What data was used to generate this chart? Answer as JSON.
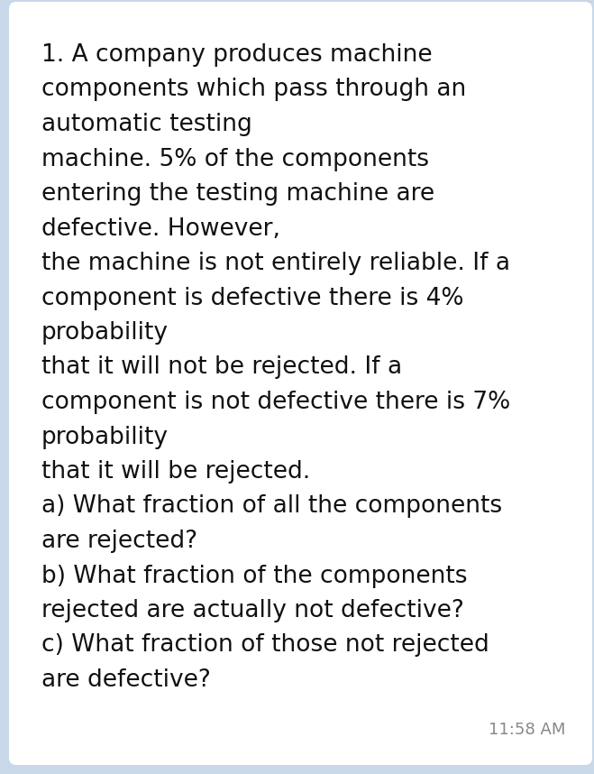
{
  "background_color": "#c8d8e8",
  "card_color": "#ffffff",
  "text_color": "#111111",
  "timestamp_color": "#888888",
  "lines": [
    "1. A company produces machine",
    "components which pass through an",
    "automatic testing",
    "machine. 5% of the components",
    "entering the testing machine are",
    "defective. However,",
    "the machine is not entirely reliable. If a",
    "component is defective there is 4%",
    "probability",
    "that it will not be rejected. If a",
    "component is not defective there is 7%",
    "probability",
    "that it will be rejected.",
    "a) What fraction of all the components",
    "are rejected?",
    "b) What fraction of the components",
    "rejected are actually not defective?",
    "c) What fraction of those not rejected",
    "are defective?"
  ],
  "timestamp": "11:58 AM",
  "font_size": 19,
  "timestamp_font_size": 13,
  "figwidth": 6.59,
  "figheight": 8.58,
  "dpi": 100
}
